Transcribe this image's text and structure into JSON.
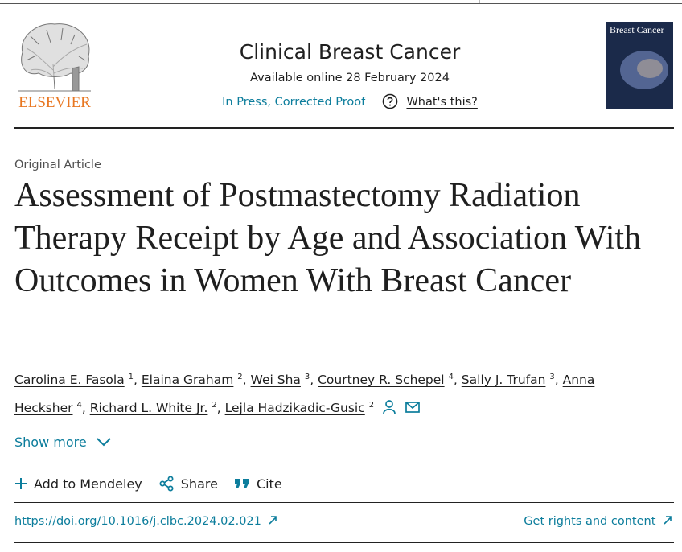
{
  "header": {
    "publisher": "ELSEVIER",
    "journal": "Clinical Breast Cancer",
    "available": "Available online 28 February 2024",
    "status": "In Press, Corrected Proof",
    "whats_this": "What's this?",
    "cover_title": "Breast Cancer"
  },
  "article_type": "Original Article",
  "title": "Assessment of Postmastectomy Radiation Therapy Receipt by Age and Association With Outcomes in Women With Breast Cancer",
  "author_separator": ",",
  "authors": [
    {
      "name": "Carolina E. Fasola",
      "sup": "1"
    },
    {
      "name": "Elaina Graham",
      "sup": "2"
    },
    {
      "name": "Wei Sha",
      "sup": "3"
    },
    {
      "name": "Courtney R. Schepel",
      "sup": "4"
    },
    {
      "name": "Sally J. Trufan",
      "sup": "3"
    },
    {
      "name": "Anna Hecksher",
      "sup": "4"
    },
    {
      "name": "Richard L. White Jr.",
      "sup": "2"
    },
    {
      "name": "Lejla Hadzikadic-Gusic",
      "sup": "2"
    }
  ],
  "show_more": "Show more",
  "actions": [
    "Add to Mendeley",
    "Share",
    "Cite"
  ],
  "doi": "https://doi.org/10.1016/j.clbc.2024.02.021",
  "rights": "Get rights and content"
}
